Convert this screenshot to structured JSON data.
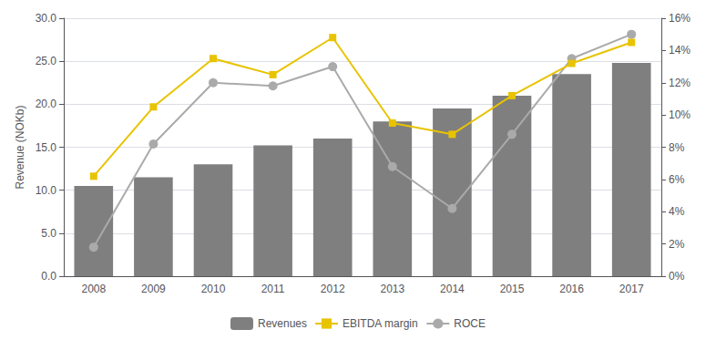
{
  "chart_data": {
    "type": "bar",
    "categories": [
      "2008",
      "2009",
      "2010",
      "2011",
      "2012",
      "2013",
      "2014",
      "2015",
      "2016",
      "2017"
    ],
    "ylabel": "Revenue (NOKb)",
    "ylim": [
      0,
      30
    ],
    "yticks": [
      {
        "value": 0.0,
        "label": "0.0"
      },
      {
        "value": 5.0,
        "label": "5.0"
      },
      {
        "value": 10.0,
        "label": "10.0"
      },
      {
        "value": 15.0,
        "label": "15.0"
      },
      {
        "value": 20.0,
        "label": "20.0"
      },
      {
        "value": 25.0,
        "label": "25.0"
      },
      {
        "value": 30.0,
        "label": "30.0"
      }
    ],
    "y2lim": [
      0,
      16
    ],
    "y2ticks": [
      {
        "value": 0,
        "label": "0%"
      },
      {
        "value": 2,
        "label": "2%"
      },
      {
        "value": 4,
        "label": "4%"
      },
      {
        "value": 6,
        "label": "6%"
      },
      {
        "value": 8,
        "label": "8%"
      },
      {
        "value": 10,
        "label": "10%"
      },
      {
        "value": 12,
        "label": "12%"
      },
      {
        "value": 14,
        "label": "14%"
      },
      {
        "value": 16,
        "label": "16%"
      }
    ],
    "grid": true,
    "legend": "bottom",
    "series": [
      {
        "name": "Revenues",
        "type": "bar",
        "color": "#7F7F7F",
        "values": [
          10.5,
          11.5,
          13.0,
          15.2,
          16.0,
          18.0,
          19.5,
          21.0,
          23.5,
          24.8
        ]
      },
      {
        "name": "EBITDA margin",
        "type": "line",
        "color": "#E8C300",
        "marker": "square",
        "axis": "y2",
        "values": [
          6.2,
          10.5,
          13.5,
          12.5,
          14.8,
          9.5,
          8.8,
          11.2,
          13.2,
          14.5
        ]
      },
      {
        "name": "ROCE",
        "type": "line",
        "color": "#AAAAAA",
        "marker": "circle",
        "axis": "y2",
        "values": [
          1.8,
          8.2,
          12.0,
          11.8,
          13.0,
          6.8,
          4.2,
          8.8,
          13.5,
          15.0
        ]
      }
    ]
  }
}
